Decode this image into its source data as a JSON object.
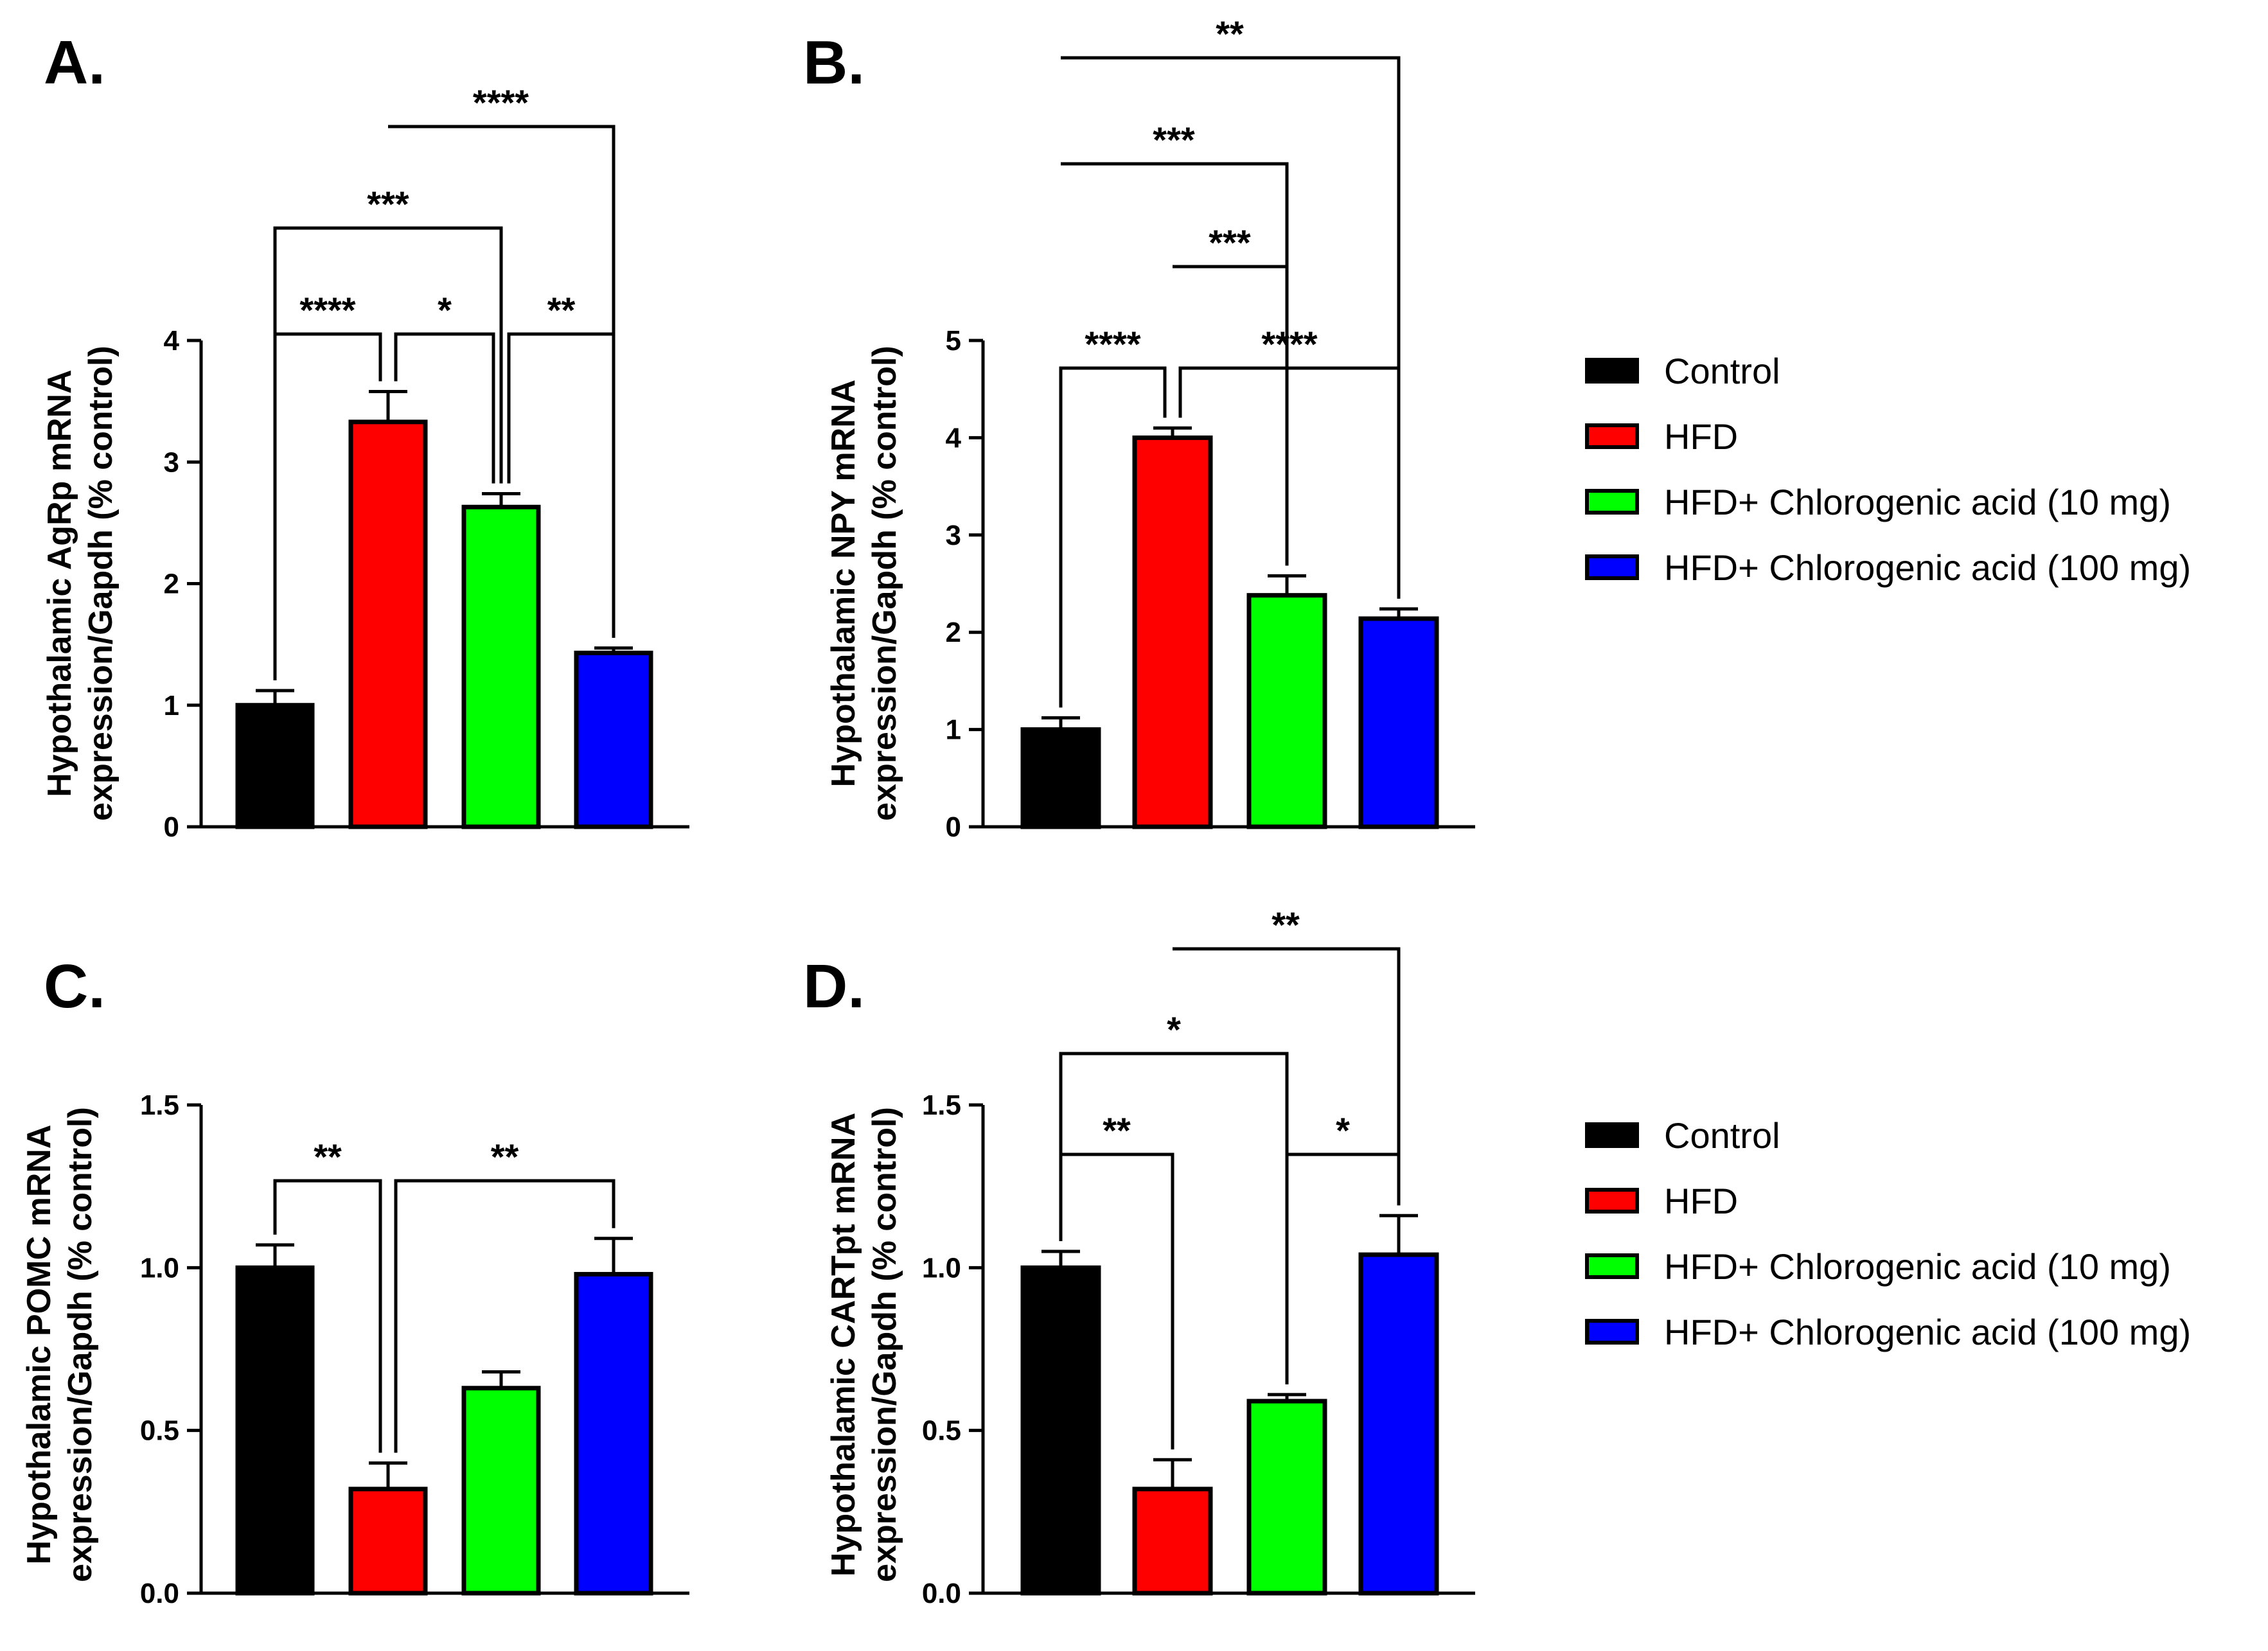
{
  "series_names": [
    "Control",
    "HFD",
    "HFD+ Chlorogenic acid (10 mg)",
    "HFD+ Chlorogenic acid (100 mg)"
  ],
  "colors": [
    "#000000",
    "#ff0000",
    "#00ff00",
    "#0000ff"
  ],
  "legends": [
    {
      "items": [
        "Control",
        "HFD",
        "HFD+ Chlorogenic acid (10 mg)",
        "HFD+ Chlorogenic acid (100 mg)"
      ]
    },
    {
      "items": [
        "Control",
        "HFD",
        "HFD+ Chlorogenic acid (10 mg)",
        "HFD+ Chlorogenic acid (100 mg)"
      ]
    }
  ],
  "chart_data": [
    {
      "type": "bar",
      "panel_label": "A.",
      "ylabel_lines": [
        "Hypothalamic AgRp mRNA",
        "expression/Gapdh (% control)"
      ],
      "categories": [
        "Control",
        "HFD",
        "HFD+ Chlorogenic acid (10 mg)",
        "HFD+ Chlorogenic acid (100 mg)"
      ],
      "values": [
        1.0,
        3.33,
        2.63,
        1.43
      ],
      "errors": [
        0.12,
        0.25,
        0.11,
        0.04
      ],
      "ylim": [
        0,
        4
      ],
      "ticks": [
        0,
        1,
        2,
        3,
        4
      ],
      "tick_labels": [
        "0",
        "1",
        "2",
        "3",
        "4"
      ],
      "comparisons": [
        {
          "from": 0,
          "to": 1,
          "label": "****",
          "level": 0,
          "drop": "both"
        },
        {
          "from": 1,
          "to": 2,
          "label": "*",
          "level": 0,
          "drop": "both"
        },
        {
          "from": 2,
          "to": 3,
          "label": "**",
          "level": 0,
          "drop": "both"
        },
        {
          "from": 0,
          "to": 2,
          "label": "***",
          "level": 1,
          "drop": "both"
        },
        {
          "from": 1,
          "to": 3,
          "label": "****",
          "level": 2,
          "drop": "right"
        }
      ]
    },
    {
      "type": "bar",
      "panel_label": "B.",
      "ylabel_lines": [
        "Hypothalamic NPY mRNA",
        "expression/Gapdh (% control)"
      ],
      "categories": [
        "Control",
        "HFD",
        "HFD+ Chlorogenic acid (10 mg)",
        "HFD+ Chlorogenic acid (100 mg)"
      ],
      "values": [
        1.0,
        4.0,
        2.38,
        2.14
      ],
      "errors": [
        0.12,
        0.1,
        0.2,
        0.1
      ],
      "ylim": [
        0,
        5
      ],
      "ticks": [
        0,
        1,
        2,
        3,
        4,
        5
      ],
      "tick_labels": [
        "0",
        "1",
        "2",
        "3",
        "4",
        "5"
      ],
      "comparisons": [
        {
          "from": 0,
          "to": 1,
          "label": "****",
          "level": 0,
          "drop": "both"
        },
        {
          "from": 1,
          "to": 3,
          "label": "****",
          "level": 0,
          "drop": "both"
        },
        {
          "from": 1,
          "to": 2,
          "label": "***",
          "level": 1,
          "drop": "right"
        },
        {
          "from": 0,
          "to": 2,
          "label": "***",
          "level": 2,
          "drop": "right"
        },
        {
          "from": 0,
          "to": 3,
          "label": "**",
          "level": 3,
          "drop": "right"
        }
      ]
    },
    {
      "type": "bar",
      "panel_label": "C.",
      "ylabel_lines": [
        "Hypothalamic POMC mRNA",
        "expression/Gapdh (% control)"
      ],
      "categories": [
        "Control",
        "HFD",
        "HFD+ Chlorogenic acid (10 mg)",
        "HFD+ Chlorogenic acid (100 mg)"
      ],
      "values": [
        1.0,
        0.32,
        0.63,
        0.98
      ],
      "errors": [
        0.07,
        0.08,
        0.05,
        0.11
      ],
      "ylim": [
        0,
        1.5
      ],
      "ticks": [
        0,
        0.5,
        1.0,
        1.5
      ],
      "tick_labels": [
        "0.0",
        "0.5",
        "1.0",
        "1.5"
      ],
      "comparisons": [
        {
          "from": 0,
          "to": 1,
          "label": "**",
          "level": 0,
          "drop": "both"
        },
        {
          "from": 1,
          "to": 3,
          "label": "**",
          "level": 0,
          "drop": "both"
        }
      ]
    },
    {
      "type": "bar",
      "panel_label": "D.",
      "ylabel_lines": [
        "Hypothalamic CARTpt mRNA",
        "expression/Gapdh (% control)"
      ],
      "categories": [
        "Control",
        "HFD",
        "HFD+ Chlorogenic acid (10 mg)",
        "HFD+ Chlorogenic acid (100 mg)"
      ],
      "values": [
        1.0,
        0.32,
        0.59,
        1.04
      ],
      "errors": [
        0.05,
        0.09,
        0.02,
        0.12
      ],
      "ylim": [
        0,
        1.5
      ],
      "ticks": [
        0,
        0.5,
        1.0,
        1.5
      ],
      "tick_labels": [
        "0.0",
        "0.5",
        "1.0",
        "1.5"
      ],
      "comparisons": [
        {
          "from": 0,
          "to": 1,
          "label": "**",
          "level": 0,
          "drop": "both"
        },
        {
          "from": 2,
          "to": 3,
          "label": "*",
          "level": 0,
          "drop": "both"
        },
        {
          "from": 0,
          "to": 2,
          "label": "*",
          "level": 1,
          "drop": "both"
        },
        {
          "from": 1,
          "to": 3,
          "label": "**",
          "level": 2,
          "drop": "right"
        }
      ]
    }
  ]
}
